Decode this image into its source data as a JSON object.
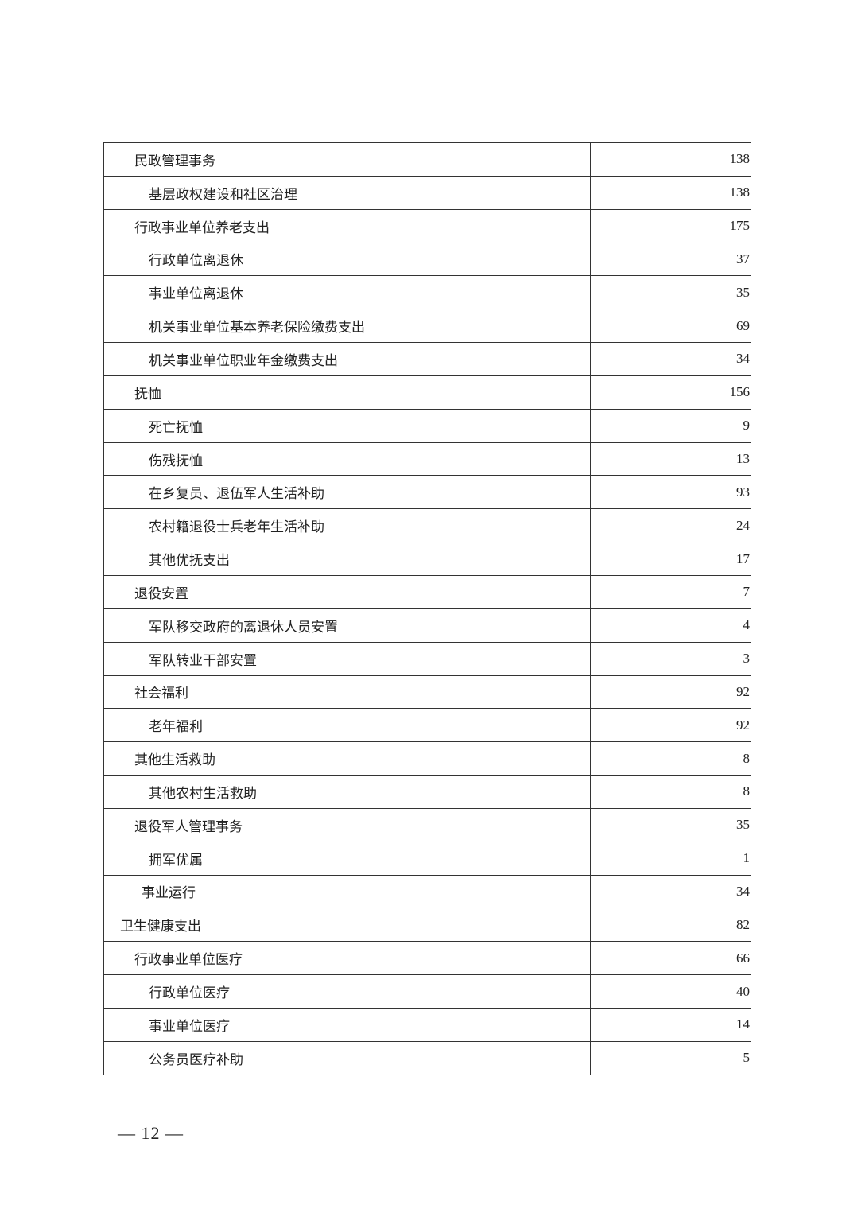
{
  "table": {
    "rows": [
      {
        "name": "民政管理事务",
        "value": "138",
        "level": 1
      },
      {
        "name": "基层政权建设和社区治理",
        "value": "138",
        "level": 2
      },
      {
        "name": "行政事业单位养老支出",
        "value": "175",
        "level": 1
      },
      {
        "name": "行政单位离退休",
        "value": "37",
        "level": 2
      },
      {
        "name": "事业单位离退休",
        "value": "35",
        "level": 2
      },
      {
        "name": "机关事业单位基本养老保险缴费支出",
        "value": "69",
        "level": 2
      },
      {
        "name": "机关事业单位职业年金缴费支出",
        "value": "34",
        "level": 2
      },
      {
        "name": "抚恤",
        "value": "156",
        "level": 1
      },
      {
        "name": "死亡抚恤",
        "value": "9",
        "level": 2
      },
      {
        "name": "伤残抚恤",
        "value": "13",
        "level": 2
      },
      {
        "name": "在乡复员、退伍军人生活补助",
        "value": "93",
        "level": 2
      },
      {
        "name": "农村籍退役士兵老年生活补助",
        "value": "24",
        "level": 2
      },
      {
        "name": "其他优抚支出",
        "value": "17",
        "level": 2
      },
      {
        "name": "退役安置",
        "value": "7",
        "level": 1
      },
      {
        "name": "军队移交政府的离退休人员安置",
        "value": "4",
        "level": 2
      },
      {
        "name": "军队转业干部安置",
        "value": "3",
        "level": 2
      },
      {
        "name": "社会福利",
        "value": "92",
        "level": 1
      },
      {
        "name": "老年福利",
        "value": "92",
        "level": 2
      },
      {
        "name": "其他生活救助",
        "value": "8",
        "level": 1
      },
      {
        "name": "其他农村生活救助",
        "value": "8",
        "level": 2
      },
      {
        "name": "退役军人管理事务",
        "value": "35",
        "level": 1
      },
      {
        "name": "拥军优属",
        "value": "1",
        "level": 2
      },
      {
        "name": "事业运行",
        "value": "34",
        "level": 1.5
      },
      {
        "name": "卫生健康支出",
        "value": "82",
        "level": 0
      },
      {
        "name": "行政事业单位医疗",
        "value": "66",
        "level": 1
      },
      {
        "name": "行政单位医疗",
        "value": "40",
        "level": 2
      },
      {
        "name": "事业单位医疗",
        "value": "14",
        "level": 2
      },
      {
        "name": "公务员医疗补助",
        "value": "5",
        "level": 2
      }
    ]
  },
  "footer": {
    "page_number": "— 12 —"
  }
}
